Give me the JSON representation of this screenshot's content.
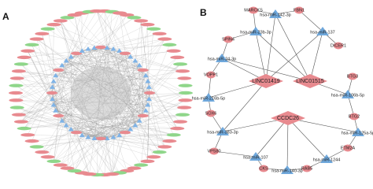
{
  "panels": [
    {
      "label": "A"
    },
    {
      "label": "B",
      "hubs": [
        "LINC01419",
        "LINC01515",
        "CCDC26"
      ],
      "mirnas": [
        "hsa-miR-142-3p",
        "hsa-miR-23b-3p",
        "hsa-miR-137",
        "hsa-miR-24-3p",
        "hsa-miR-216b-5p",
        "hsa-miR-106b-5p",
        "hsa-miR-383-3p",
        "hsa-miR-125a-5p",
        "hsa-miR-107",
        "hsa-miR-1244",
        "hsa-miR-140-3p"
      ],
      "genes": [
        "MARCKS",
        "FBN1",
        "SPIN4",
        "DICER1",
        "VOPP1",
        "BTG3",
        "SOX6",
        "BTG2",
        "ETM2A",
        "VPS80",
        "CKS",
        "RAB5"
      ]
    }
  ]
}
